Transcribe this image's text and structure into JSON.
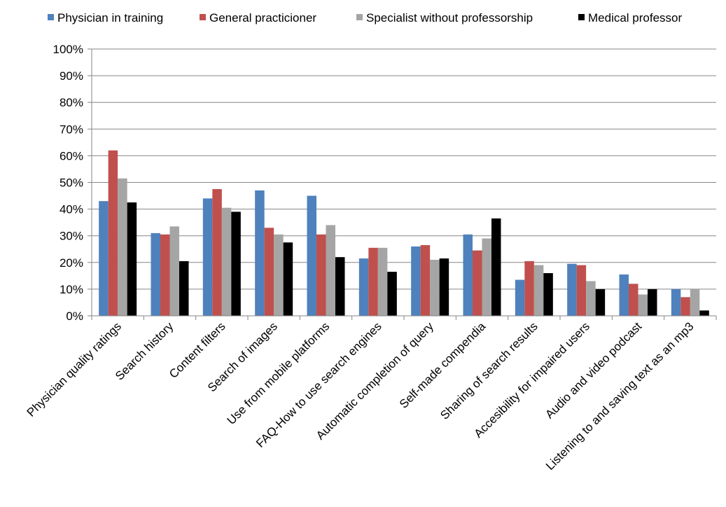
{
  "chart_data": {
    "type": "bar",
    "title": "",
    "xlabel": "",
    "ylabel": "",
    "ylim": [
      0,
      100
    ],
    "y_ticks": [
      "0%",
      "10%",
      "20%",
      "30%",
      "40%",
      "50%",
      "60%",
      "70%",
      "80%",
      "90%",
      "100%"
    ],
    "grid": true,
    "legend_position": "top",
    "categories": [
      "Physician quality ratings",
      "Search history",
      "Content filters",
      "Search of images",
      "Use from mobile platforms",
      "FAQ-How to use search engines",
      "Automatic completion of query",
      "Self-made compendia",
      "Sharing of search results",
      "Accesibility for impaired users",
      "Audio and video podcast",
      "Listening to and saving text as an mp3"
    ],
    "series": [
      {
        "name": "Physician in training",
        "color": "#4F81BD",
        "values": [
          43,
          31,
          44,
          47,
          45,
          21.5,
          26,
          30.5,
          13.5,
          19.5,
          15.5,
          10
        ]
      },
      {
        "name": "General practicioner",
        "color": "#C0504D",
        "values": [
          62,
          30.5,
          47.5,
          33,
          30.5,
          25.5,
          26.5,
          24.5,
          20.5,
          19,
          12,
          7
        ]
      },
      {
        "name": "Specialist without professorship",
        "color": "#A5A5A5",
        "values": [
          51.5,
          33.5,
          40.5,
          30.5,
          34,
          25.5,
          21,
          29,
          19,
          13,
          8,
          10
        ]
      },
      {
        "name": "Medical professor",
        "color": "#000000",
        "values": [
          42.5,
          20.5,
          39,
          27.5,
          22,
          16.5,
          21.5,
          36.5,
          16,
          10,
          10,
          2
        ]
      }
    ]
  }
}
